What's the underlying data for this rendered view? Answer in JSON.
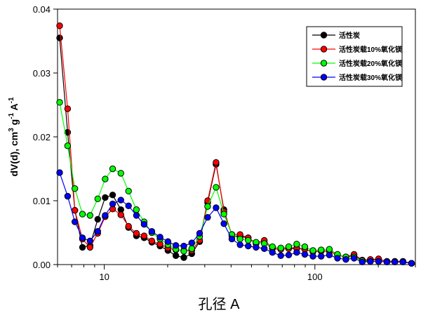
{
  "chart_data": {
    "type": "line",
    "title": "",
    "xlabel": "孔径 A",
    "ylabel": {
      "main": "dV(d), cm",
      "sup1": "3",
      "mid": " g",
      "sup2": "-1",
      "mid2": " A",
      "sup3": "-1"
    },
    "x_scale": "log",
    "xlim": [
      6,
      300
    ],
    "ylim": [
      0,
      0.04
    ],
    "x_ticks": [
      {
        "value": 10,
        "label": "10"
      },
      {
        "value": 100,
        "label": "100"
      }
    ],
    "y_ticks": [
      {
        "value": 0,
        "label": "0.00"
      },
      {
        "value": 0.01,
        "label": "0.01"
      },
      {
        "value": 0.02,
        "label": "0.02"
      },
      {
        "value": 0.03,
        "label": "0.03"
      },
      {
        "value": 0.04,
        "label": "0.04"
      }
    ],
    "grid": false,
    "legend_position": "top-right",
    "x": [
      6.14,
      6.7,
      7.25,
      7.88,
      8.56,
      9.31,
      10.1,
      10.96,
      11.99,
      13.04,
      14.21,
      15.46,
      16.82,
      18.4,
      20.06,
      21.87,
      23.87,
      26.02,
      28.37,
      30.96,
      33.94,
      36.98,
      40.35,
      44.13,
      48.24,
      52.55,
      57.51,
      62.86,
      68.9,
      75.11,
      81.98,
      89.57,
      97.9,
      107.1,
      117.1,
      128.0,
      140.3,
      153.4,
      167.8,
      183.4,
      200.6,
      219.8,
      239.6,
      261.9,
      287.6
    ],
    "series": [
      {
        "name": "活性炭",
        "color": "#000000",
        "values": [
          0.0355,
          0.0207,
          0.0085,
          0.0027,
          0.003,
          0.0071,
          0.0105,
          0.0109,
          0.0086,
          0.0058,
          0.0045,
          0.0042,
          0.0035,
          0.0029,
          0.0022,
          0.0014,
          0.0011,
          0.0017,
          0.0036,
          0.0097,
          0.0157,
          0.0086,
          0.0045,
          0.0044,
          0.0042,
          0.0033,
          0.0035,
          0.0025,
          0.0024,
          0.0026,
          0.0026,
          0.0024,
          0.002,
          0.0021,
          0.0021,
          0.0015,
          0.0012,
          0.0015,
          0.0006,
          0.0007,
          0.0008,
          0.0005,
          0.0005,
          0.0005,
          0.0002
        ]
      },
      {
        "name": "活性炭载10%氧化镁",
        "color": "#ff0000",
        "values": [
          0.0374,
          0.0244,
          0.0085,
          0.004,
          0.0027,
          0.0049,
          0.0075,
          0.0087,
          0.0078,
          0.006,
          0.0049,
          0.0045,
          0.0037,
          0.0032,
          0.0026,
          0.0023,
          0.0022,
          0.0022,
          0.0038,
          0.01,
          0.016,
          0.0083,
          0.0047,
          0.0047,
          0.0042,
          0.0034,
          0.0038,
          0.0026,
          0.0024,
          0.0025,
          0.0025,
          0.0024,
          0.002,
          0.0021,
          0.0021,
          0.0015,
          0.0012,
          0.0016,
          0.0007,
          0.0008,
          0.0009,
          0.0005,
          0.0005,
          0.0005,
          0.0002
        ]
      },
      {
        "name": "活性炭载20%氧化镁",
        "color": "#00ff00",
        "values": [
          0.0254,
          0.0186,
          0.0119,
          0.0079,
          0.0077,
          0.0103,
          0.0134,
          0.015,
          0.0143,
          0.0115,
          0.0086,
          0.0067,
          0.005,
          0.004,
          0.0031,
          0.0024,
          0.0021,
          0.0025,
          0.0044,
          0.0091,
          0.0121,
          0.0079,
          0.0047,
          0.004,
          0.0038,
          0.0035,
          0.0033,
          0.0028,
          0.0026,
          0.0028,
          0.0032,
          0.0028,
          0.0022,
          0.0023,
          0.0024,
          0.0016,
          0.0012,
          0.0012,
          0.0006,
          0.0005,
          0.0005,
          0.0004,
          0.0004,
          0.0004,
          0.0002
        ]
      },
      {
        "name": "活性炭载30%氧化镁",
        "color": "#0000ff",
        "values": [
          0.0144,
          0.0107,
          0.0067,
          0.0042,
          0.0037,
          0.0052,
          0.0077,
          0.0095,
          0.0101,
          0.0092,
          0.0077,
          0.0063,
          0.0052,
          0.0043,
          0.0036,
          0.003,
          0.0029,
          0.0034,
          0.0049,
          0.0074,
          0.0089,
          0.0064,
          0.004,
          0.0031,
          0.0029,
          0.0027,
          0.0025,
          0.0019,
          0.0014,
          0.0015,
          0.0019,
          0.0016,
          0.0013,
          0.0013,
          0.0015,
          0.001,
          0.0008,
          0.001,
          0.0004,
          0.0005,
          0.0005,
          0.0004,
          0.0004,
          0.0004,
          0.0002
        ]
      }
    ]
  }
}
